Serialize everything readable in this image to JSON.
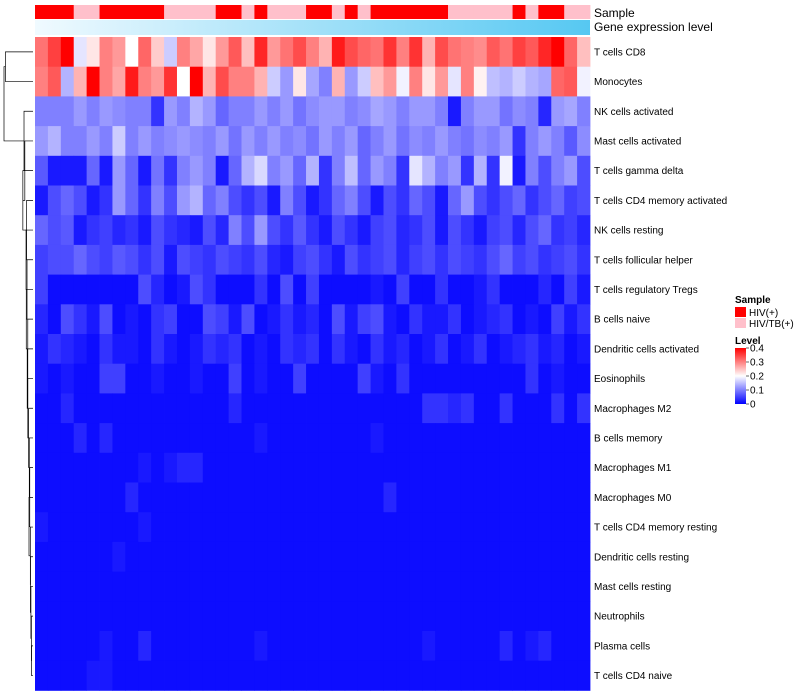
{
  "chart_data": {
    "type": "heatmap",
    "sample_annotation_label": "Sample",
    "gene_expression_label": "Gene expression level",
    "samples": [
      "HIV(+)",
      "HIV(+)",
      "HIV(+)",
      "HIV/TB(+)",
      "HIV/TB(+)",
      "HIV(+)",
      "HIV(+)",
      "HIV(+)",
      "HIV(+)",
      "HIV(+)",
      "HIV/TB(+)",
      "HIV/TB(+)",
      "HIV/TB(+)",
      "HIV/TB(+)",
      "HIV(+)",
      "HIV(+)",
      "HIV/TB(+)",
      "HIV(+)",
      "HIV/TB(+)",
      "HIV/TB(+)",
      "HIV/TB(+)",
      "HIV(+)",
      "HIV(+)",
      "HIV/TB(+)",
      "HIV(+)",
      "HIV/TB(+)",
      "HIV(+)",
      "HIV(+)",
      "HIV(+)",
      "HIV(+)",
      "HIV(+)",
      "HIV(+)",
      "HIV/TB(+)",
      "HIV/TB(+)",
      "HIV/TB(+)",
      "HIV/TB(+)",
      "HIV/TB(+)",
      "HIV(+)",
      "HIV/TB(+)",
      "HIV(+)",
      "HIV(+)",
      "HIV/TB(+)",
      "HIV/TB(+)"
    ],
    "rows": [
      "T cells CD8",
      "Monocytes",
      "NK cells activated",
      "Mast cells activated",
      "T cells gamma delta",
      "T cells CD4 memory activated",
      "NK cells resting",
      "T cells follicular helper",
      "T cells regulatory  Tregs",
      "B cells naive",
      "Dendritic cells activated",
      "Eosinophils",
      "Macrophages M2",
      "B cells memory",
      "Macrophages M1",
      "Macrophages M0",
      "T cells CD4 memory resting",
      "Dendritic cells resting",
      "Mast cells resting",
      "Neutrophils",
      "Plasma cells",
      "T cells CD4 naive"
    ],
    "values": [
      [
        0.31,
        0.35,
        0.4,
        0.18,
        0.22,
        0.3,
        0.28,
        0.2,
        0.32,
        0.24,
        0.16,
        0.3,
        0.27,
        0.22,
        0.28,
        0.33,
        0.25,
        0.37,
        0.28,
        0.31,
        0.34,
        0.3,
        0.26,
        0.38,
        0.34,
        0.32,
        0.31,
        0.36,
        0.3,
        0.36,
        0.26,
        0.34,
        0.31,
        0.3,
        0.29,
        0.33,
        0.31,
        0.35,
        0.33,
        0.37,
        0.4,
        0.32,
        0.25
      ],
      [
        0.3,
        0.33,
        0.14,
        0.26,
        0.4,
        0.3,
        0.27,
        0.38,
        0.3,
        0.28,
        0.36,
        0.2,
        0.4,
        0.26,
        0.34,
        0.3,
        0.3,
        0.26,
        0.16,
        0.12,
        0.22,
        0.13,
        0.1,
        0.26,
        0.12,
        0.16,
        0.25,
        0.28,
        0.19,
        0.3,
        0.22,
        0.28,
        0.18,
        0.3,
        0.21,
        0.15,
        0.14,
        0.16,
        0.14,
        0.13,
        0.32,
        0.33,
        0.19
      ],
      [
        0.1,
        0.1,
        0.1,
        0.12,
        0.1,
        0.12,
        0.11,
        0.1,
        0.1,
        0.04,
        0.12,
        0.1,
        0.14,
        0.12,
        0.08,
        0.1,
        0.1,
        0.12,
        0.1,
        0.12,
        0.09,
        0.11,
        0.12,
        0.12,
        0.1,
        0.11,
        0.13,
        0.12,
        0.1,
        0.12,
        0.12,
        0.1,
        0.02,
        0.1,
        0.12,
        0.12,
        0.09,
        0.11,
        0.1,
        0.03,
        0.12,
        0.13,
        0.1
      ],
      [
        0.12,
        0.14,
        0.1,
        0.1,
        0.12,
        0.1,
        0.16,
        0.1,
        0.12,
        0.1,
        0.11,
        0.12,
        0.11,
        0.1,
        0.12,
        0.09,
        0.12,
        0.1,
        0.12,
        0.1,
        0.11,
        0.09,
        0.12,
        0.1,
        0.12,
        0.08,
        0.1,
        0.12,
        0.09,
        0.11,
        0.1,
        0.12,
        0.1,
        0.09,
        0.11,
        0.1,
        0.12,
        0.04,
        0.1,
        0.12,
        0.1,
        0.07,
        0.11
      ],
      [
        0.07,
        0.02,
        0.02,
        0.02,
        0.08,
        0.02,
        0.12,
        0.08,
        0.02,
        0.09,
        0.04,
        0.1,
        0.12,
        0.1,
        0.02,
        0.08,
        0.14,
        0.17,
        0.1,
        0.12,
        0.08,
        0.14,
        0.04,
        0.1,
        0.15,
        0.08,
        0.12,
        0.1,
        0.04,
        0.18,
        0.14,
        0.1,
        0.12,
        0.04,
        0.14,
        0.04,
        0.19,
        0.02,
        0.1,
        0.06,
        0.1,
        0.12,
        0.06
      ],
      [
        0.02,
        0.06,
        0.08,
        0.06,
        0.02,
        0.04,
        0.12,
        0.08,
        0.04,
        0.1,
        0.06,
        0.12,
        0.14,
        0.08,
        0.1,
        0.06,
        0.04,
        0.06,
        0.02,
        0.1,
        0.06,
        0.02,
        0.04,
        0.08,
        0.1,
        0.06,
        0.02,
        0.06,
        0.04,
        0.08,
        0.06,
        0.02,
        0.08,
        0.12,
        0.06,
        0.04,
        0.06,
        0.08,
        0.04,
        0.06,
        0.08,
        0.05,
        0.06
      ],
      [
        0.08,
        0.06,
        0.07,
        0.02,
        0.04,
        0.05,
        0.03,
        0.04,
        0.02,
        0.06,
        0.04,
        0.03,
        0.02,
        0.06,
        0.03,
        0.1,
        0.06,
        0.12,
        0.06,
        0.04,
        0.07,
        0.04,
        0.02,
        0.06,
        0.04,
        0.02,
        0.05,
        0.06,
        0.03,
        0.04,
        0.06,
        0.02,
        0.06,
        0.04,
        0.02,
        0.05,
        0.06,
        0.03,
        0.06,
        0.08,
        0.04,
        0.05,
        0.03
      ],
      [
        0.05,
        0.06,
        0.06,
        0.08,
        0.06,
        0.05,
        0.07,
        0.06,
        0.04,
        0.06,
        0.02,
        0.06,
        0.05,
        0.04,
        0.06,
        0.05,
        0.04,
        0.06,
        0.03,
        0.02,
        0.05,
        0.06,
        0.04,
        0.02,
        0.06,
        0.04,
        0.05,
        0.06,
        0.03,
        0.05,
        0.06,
        0.04,
        0.06,
        0.05,
        0.04,
        0.06,
        0.08,
        0.05,
        0.06,
        0.04,
        0.05,
        0.06,
        0.04
      ],
      [
        0.05,
        0.01,
        0.01,
        0.01,
        0.01,
        0.01,
        0.01,
        0.01,
        0.06,
        0.03,
        0.01,
        0.02,
        0.06,
        0.04,
        0.01,
        0.01,
        0.01,
        0.04,
        0.01,
        0.06,
        0.01,
        0.05,
        0.01,
        0.01,
        0.01,
        0.01,
        0.02,
        0.01,
        0.05,
        0.01,
        0.01,
        0.04,
        0.01,
        0.01,
        0.02,
        0.04,
        0.01,
        0.01,
        0.01,
        0.03,
        0.01,
        0.05,
        0.02
      ],
      [
        0.03,
        0.01,
        0.06,
        0.04,
        0.02,
        0.06,
        0.01,
        0.02,
        0.01,
        0.04,
        0.05,
        0.01,
        0.01,
        0.06,
        0.05,
        0.02,
        0.06,
        0.01,
        0.02,
        0.04,
        0.02,
        0.03,
        0.01,
        0.06,
        0.02,
        0.05,
        0.06,
        0.02,
        0.01,
        0.04,
        0.02,
        0.02,
        0.04,
        0.01,
        0.02,
        0.03,
        0.04,
        0.01,
        0.02,
        0.01,
        0.05,
        0.02,
        0.04
      ],
      [
        0.02,
        0.04,
        0.03,
        0.02,
        0.01,
        0.04,
        0.02,
        0.02,
        0.01,
        0.04,
        0.02,
        0.01,
        0.02,
        0.04,
        0.03,
        0.04,
        0.01,
        0.02,
        0.01,
        0.04,
        0.03,
        0.04,
        0.01,
        0.04,
        0.02,
        0.01,
        0.04,
        0.02,
        0.03,
        0.01,
        0.02,
        0.04,
        0.01,
        0.02,
        0.04,
        0.01,
        0.02,
        0.03,
        0.04,
        0.02,
        0.03,
        0.01,
        0.02
      ],
      [
        0.02,
        0.01,
        0.02,
        0.01,
        0.01,
        0.05,
        0.05,
        0.01,
        0.01,
        0.02,
        0.01,
        0.01,
        0.02,
        0.01,
        0.01,
        0.05,
        0.01,
        0.02,
        0.01,
        0.01,
        0.05,
        0.01,
        0.01,
        0.01,
        0.01,
        0.05,
        0.02,
        0.01,
        0.04,
        0.01,
        0.01,
        0.01,
        0.01,
        0.01,
        0.01,
        0.01,
        0.01,
        0.01,
        0.04,
        0.01,
        0.02,
        0.01,
        0.01
      ],
      [
        0.01,
        0.01,
        0.03,
        0.01,
        0.01,
        0.01,
        0.01,
        0.01,
        0.01,
        0.01,
        0.01,
        0.01,
        0.01,
        0.01,
        0.01,
        0.03,
        0.01,
        0.01,
        0.01,
        0.01,
        0.01,
        0.01,
        0.01,
        0.01,
        0.01,
        0.01,
        0.01,
        0.01,
        0.01,
        0.01,
        0.04,
        0.04,
        0.03,
        0.04,
        0.01,
        0.01,
        0.04,
        0.01,
        0.01,
        0.01,
        0.04,
        0.01,
        0.04
      ],
      [
        0.01,
        0.01,
        0.01,
        0.03,
        0.01,
        0.03,
        0.01,
        0.01,
        0.01,
        0.01,
        0.01,
        0.01,
        0.01,
        0.01,
        0.01,
        0.01,
        0.01,
        0.02,
        0.01,
        0.01,
        0.01,
        0.01,
        0.01,
        0.01,
        0.01,
        0.01,
        0.02,
        0.01,
        0.01,
        0.01,
        0.01,
        0.01,
        0.01,
        0.01,
        0.01,
        0.01,
        0.01,
        0.01,
        0.01,
        0.01,
        0.01,
        0.01,
        0.01
      ],
      [
        0.01,
        0.01,
        0.01,
        0.01,
        0.01,
        0.01,
        0.01,
        0.01,
        0.02,
        0.01,
        0.02,
        0.03,
        0.03,
        0.01,
        0.01,
        0.01,
        0.01,
        0.01,
        0.01,
        0.01,
        0.01,
        0.01,
        0.01,
        0.01,
        0.01,
        0.01,
        0.01,
        0.01,
        0.01,
        0.01,
        0.01,
        0.01,
        0.01,
        0.01,
        0.01,
        0.01,
        0.01,
        0.01,
        0.01,
        0.01,
        0.01,
        0.01,
        0.01
      ],
      [
        0.01,
        0.01,
        0.01,
        0.01,
        0.01,
        0.01,
        0.01,
        0.03,
        0.01,
        0.01,
        0.01,
        0.01,
        0.01,
        0.01,
        0.01,
        0.01,
        0.01,
        0.01,
        0.01,
        0.01,
        0.01,
        0.01,
        0.01,
        0.01,
        0.01,
        0.01,
        0.01,
        0.03,
        0.01,
        0.01,
        0.01,
        0.01,
        0.01,
        0.01,
        0.01,
        0.01,
        0.01,
        0.01,
        0.01,
        0.01,
        0.01,
        0.01,
        0.01
      ],
      [
        0.02,
        0.01,
        0.01,
        0.01,
        0.01,
        0.01,
        0.01,
        0.01,
        0.02,
        0.01,
        0.01,
        0.01,
        0.01,
        0.01,
        0.01,
        0.01,
        0.01,
        0.01,
        0.01,
        0.01,
        0.01,
        0.01,
        0.01,
        0.01,
        0.01,
        0.01,
        0.01,
        0.01,
        0.01,
        0.01,
        0.01,
        0.01,
        0.01,
        0.01,
        0.01,
        0.01,
        0.01,
        0.01,
        0.01,
        0.01,
        0.01,
        0.01,
        0.01
      ],
      [
        0.01,
        0.01,
        0.01,
        0.01,
        0.01,
        0.01,
        0.02,
        0.01,
        0.01,
        0.01,
        0.01,
        0.01,
        0.01,
        0.01,
        0.01,
        0.01,
        0.01,
        0.01,
        0.01,
        0.01,
        0.01,
        0.01,
        0.01,
        0.01,
        0.01,
        0.01,
        0.01,
        0.01,
        0.01,
        0.01,
        0.01,
        0.01,
        0.01,
        0.01,
        0.01,
        0.01,
        0.01,
        0.01,
        0.01,
        0.01,
        0.01,
        0.01,
        0.01
      ],
      [
        0.01,
        0.01,
        0.01,
        0.01,
        0.01,
        0.01,
        0.01,
        0.01,
        0.01,
        0.01,
        0.01,
        0.01,
        0.01,
        0.01,
        0.01,
        0.01,
        0.01,
        0.01,
        0.01,
        0.01,
        0.01,
        0.01,
        0.01,
        0.01,
        0.01,
        0.01,
        0.01,
        0.01,
        0.01,
        0.01,
        0.01,
        0.01,
        0.01,
        0.01,
        0.01,
        0.01,
        0.01,
        0.01,
        0.01,
        0.01,
        0.01,
        0.01,
        0.01
      ],
      [
        0.01,
        0.01,
        0.01,
        0.01,
        0.01,
        0.01,
        0.01,
        0.01,
        0.01,
        0.01,
        0.01,
        0.01,
        0.01,
        0.01,
        0.01,
        0.01,
        0.01,
        0.01,
        0.01,
        0.01,
        0.01,
        0.01,
        0.01,
        0.01,
        0.01,
        0.01,
        0.01,
        0.01,
        0.01,
        0.01,
        0.01,
        0.01,
        0.01,
        0.01,
        0.01,
        0.01,
        0.01,
        0.01,
        0.01,
        0.01,
        0.01,
        0.01,
        0.01
      ],
      [
        0.01,
        0.01,
        0.01,
        0.01,
        0.01,
        0.02,
        0.01,
        0.01,
        0.03,
        0.01,
        0.01,
        0.01,
        0.01,
        0.01,
        0.01,
        0.01,
        0.01,
        0.02,
        0.01,
        0.01,
        0.01,
        0.01,
        0.01,
        0.01,
        0.01,
        0.01,
        0.01,
        0.01,
        0.01,
        0.01,
        0.02,
        0.01,
        0.01,
        0.01,
        0.01,
        0.01,
        0.03,
        0.01,
        0.02,
        0.03,
        0.01,
        0.01,
        0.01
      ],
      [
        0.01,
        0.01,
        0.01,
        0.01,
        0.02,
        0.02,
        0.01,
        0.01,
        0.01,
        0.01,
        0.01,
        0.01,
        0.01,
        0.01,
        0.01,
        0.01,
        0.01,
        0.01,
        0.01,
        0.01,
        0.01,
        0.01,
        0.01,
        0.01,
        0.01,
        0.01,
        0.01,
        0.01,
        0.01,
        0.01,
        0.01,
        0.01,
        0.01,
        0.01,
        0.01,
        0.01,
        0.01,
        0.01,
        0.01,
        0.01,
        0.01,
        0.01,
        0.01
      ]
    ],
    "color_scale": {
      "min": 0,
      "mid": 0.2,
      "max": 0.4,
      "low_color": "#0000ff",
      "mid_color": "#ffffff",
      "high_color": "#ff0000"
    },
    "legend": {
      "sample_title": "Sample",
      "sample_entries": [
        {
          "label": "HIV(+)",
          "color": "#ff0000"
        },
        {
          "label": "HIV/TB(+)",
          "color": "#ffc0cb"
        }
      ],
      "level_title": "Level",
      "level_ticks": [
        "0.4",
        "0.3",
        "0.2",
        "0.1",
        "0"
      ],
      "level_tick_values": [
        0.4,
        0.3,
        0.2,
        0.1,
        0
      ],
      "placement": "right"
    },
    "gene_expression_gradient": {
      "start": "#f0faff",
      "end": "#56c8f2"
    }
  }
}
